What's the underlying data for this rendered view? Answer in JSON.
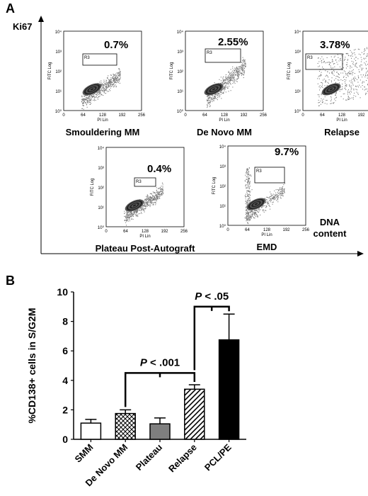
{
  "panelA": {
    "label": "A",
    "ylabel": "Ki67",
    "xlabel_line1": "DNA",
    "xlabel_line2": "content",
    "plot_ylabel": "FITC Log",
    "plot_xlabel": "PI Lin",
    "gate": "R3",
    "yticks": [
      "10⁰",
      "10¹",
      "10²",
      "10³",
      "10⁴"
    ],
    "xticks": [
      "0",
      "64",
      "128",
      "192",
      "256"
    ],
    "plots": [
      {
        "title": "Smouldering MM",
        "percent": "0.7%"
      },
      {
        "title": "De Novo MM",
        "percent": "2.55%"
      },
      {
        "title": "Relapse",
        "percent": "3.78%"
      },
      {
        "title": "Plateau Post-Autograft",
        "percent": "0.4%"
      },
      {
        "title": "EMD",
        "percent": "9.7%"
      }
    ]
  },
  "panelB": {
    "label": "B",
    "sig1": {
      "p": "P",
      "text": " < .001"
    },
    "sig2": {
      "p": "P",
      "text": " < .05"
    },
    "chart_data": {
      "type": "bar",
      "ylabel": "%CD138+ cells in S/G2M",
      "categories": [
        "SMM",
        "De Novo MM",
        "Plateau",
        "Relapse",
        "PCL/PE"
      ],
      "values": [
        1.1,
        1.75,
        1.05,
        3.4,
        6.75
      ],
      "errors": [
        0.25,
        0.25,
        0.4,
        0.3,
        1.75
      ],
      "patterns": [
        "white",
        "crosshatch",
        "gray",
        "diagonal",
        "black"
      ],
      "ylim": [
        0,
        10
      ],
      "yticks": [
        "0",
        "2",
        "4",
        "6",
        "8",
        "10"
      ]
    }
  }
}
